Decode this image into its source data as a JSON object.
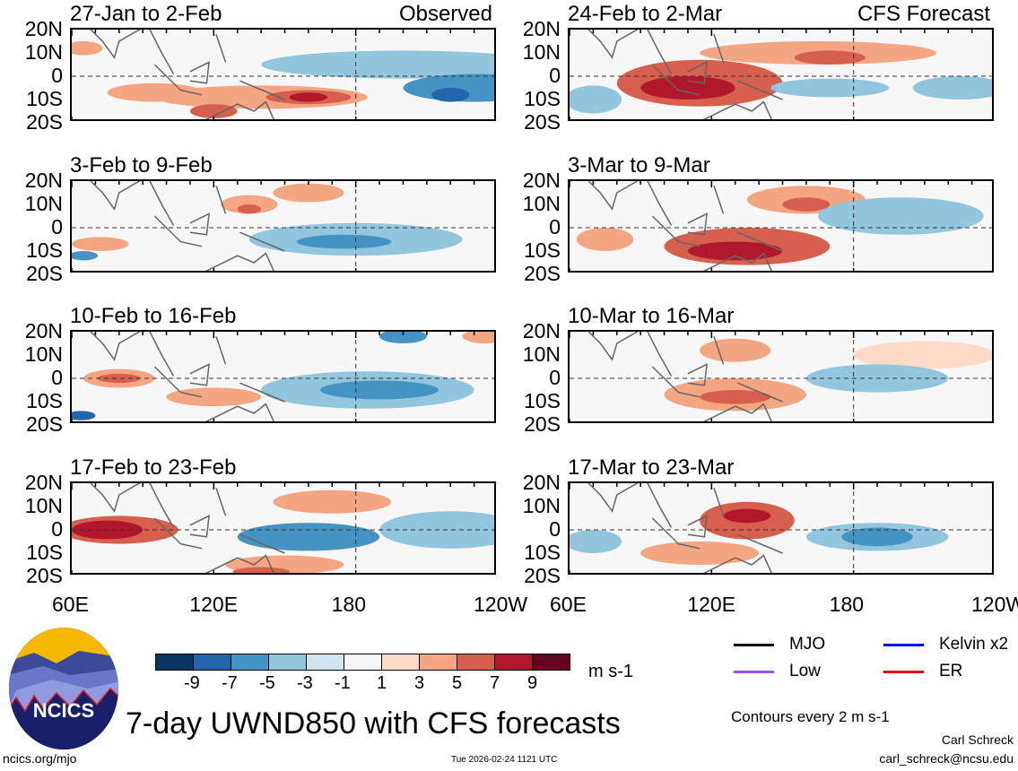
{
  "panels": [
    {
      "title": "27-Jan to 2-Feb",
      "tag": "Observed"
    },
    {
      "title": "3-Feb to 9-Feb",
      "tag": ""
    },
    {
      "title": "10-Feb to 16-Feb",
      "tag": ""
    },
    {
      "title": "17-Feb to 23-Feb",
      "tag": ""
    },
    {
      "title": "24-Feb to 2-Mar",
      "tag": "CFS Forecast"
    },
    {
      "title": "3-Mar to 9-Mar",
      "tag": ""
    },
    {
      "title": "10-Mar to 16-Mar",
      "tag": ""
    },
    {
      "title": "17-Mar to 23-Mar",
      "tag": ""
    }
  ],
  "lat_labels": [
    "20N",
    "10N",
    "0",
    "10S",
    "20S"
  ],
  "lon_labels": [
    "60E",
    "120E",
    "180",
    "120W"
  ],
  "colorbar": {
    "colors": [
      "#0b3563",
      "#2466ad",
      "#4393c3",
      "#92c5de",
      "#d1e5f0",
      "#f7f7f7",
      "#fddbc7",
      "#f4a582",
      "#d6604d",
      "#b2182b",
      "#67001f"
    ],
    "labels": [
      "-9",
      "-7",
      "-5",
      "-3",
      "-1",
      "1",
      "3",
      "5",
      "7",
      "9"
    ],
    "units": "m s-1"
  },
  "legend": [
    {
      "label": "MJO",
      "color": "#000000"
    },
    {
      "label": "Kelvin x2",
      "color": "#0000ff"
    },
    {
      "label": "Low",
      "color": "#a050f0"
    },
    {
      "label": "ER",
      "color": "#e01010"
    }
  ],
  "contours_note": "Contours every 2 m s-1",
  "main_title": "7-day UWND850 with CFS forecasts",
  "logo_text": "NCICS",
  "website": "ncics.org/mjo",
  "timestamp": "Tue 2026-02-24 1121 UTC",
  "author": "Carl Schreck",
  "email": "carl_schreck@ncsu.edu"
}
